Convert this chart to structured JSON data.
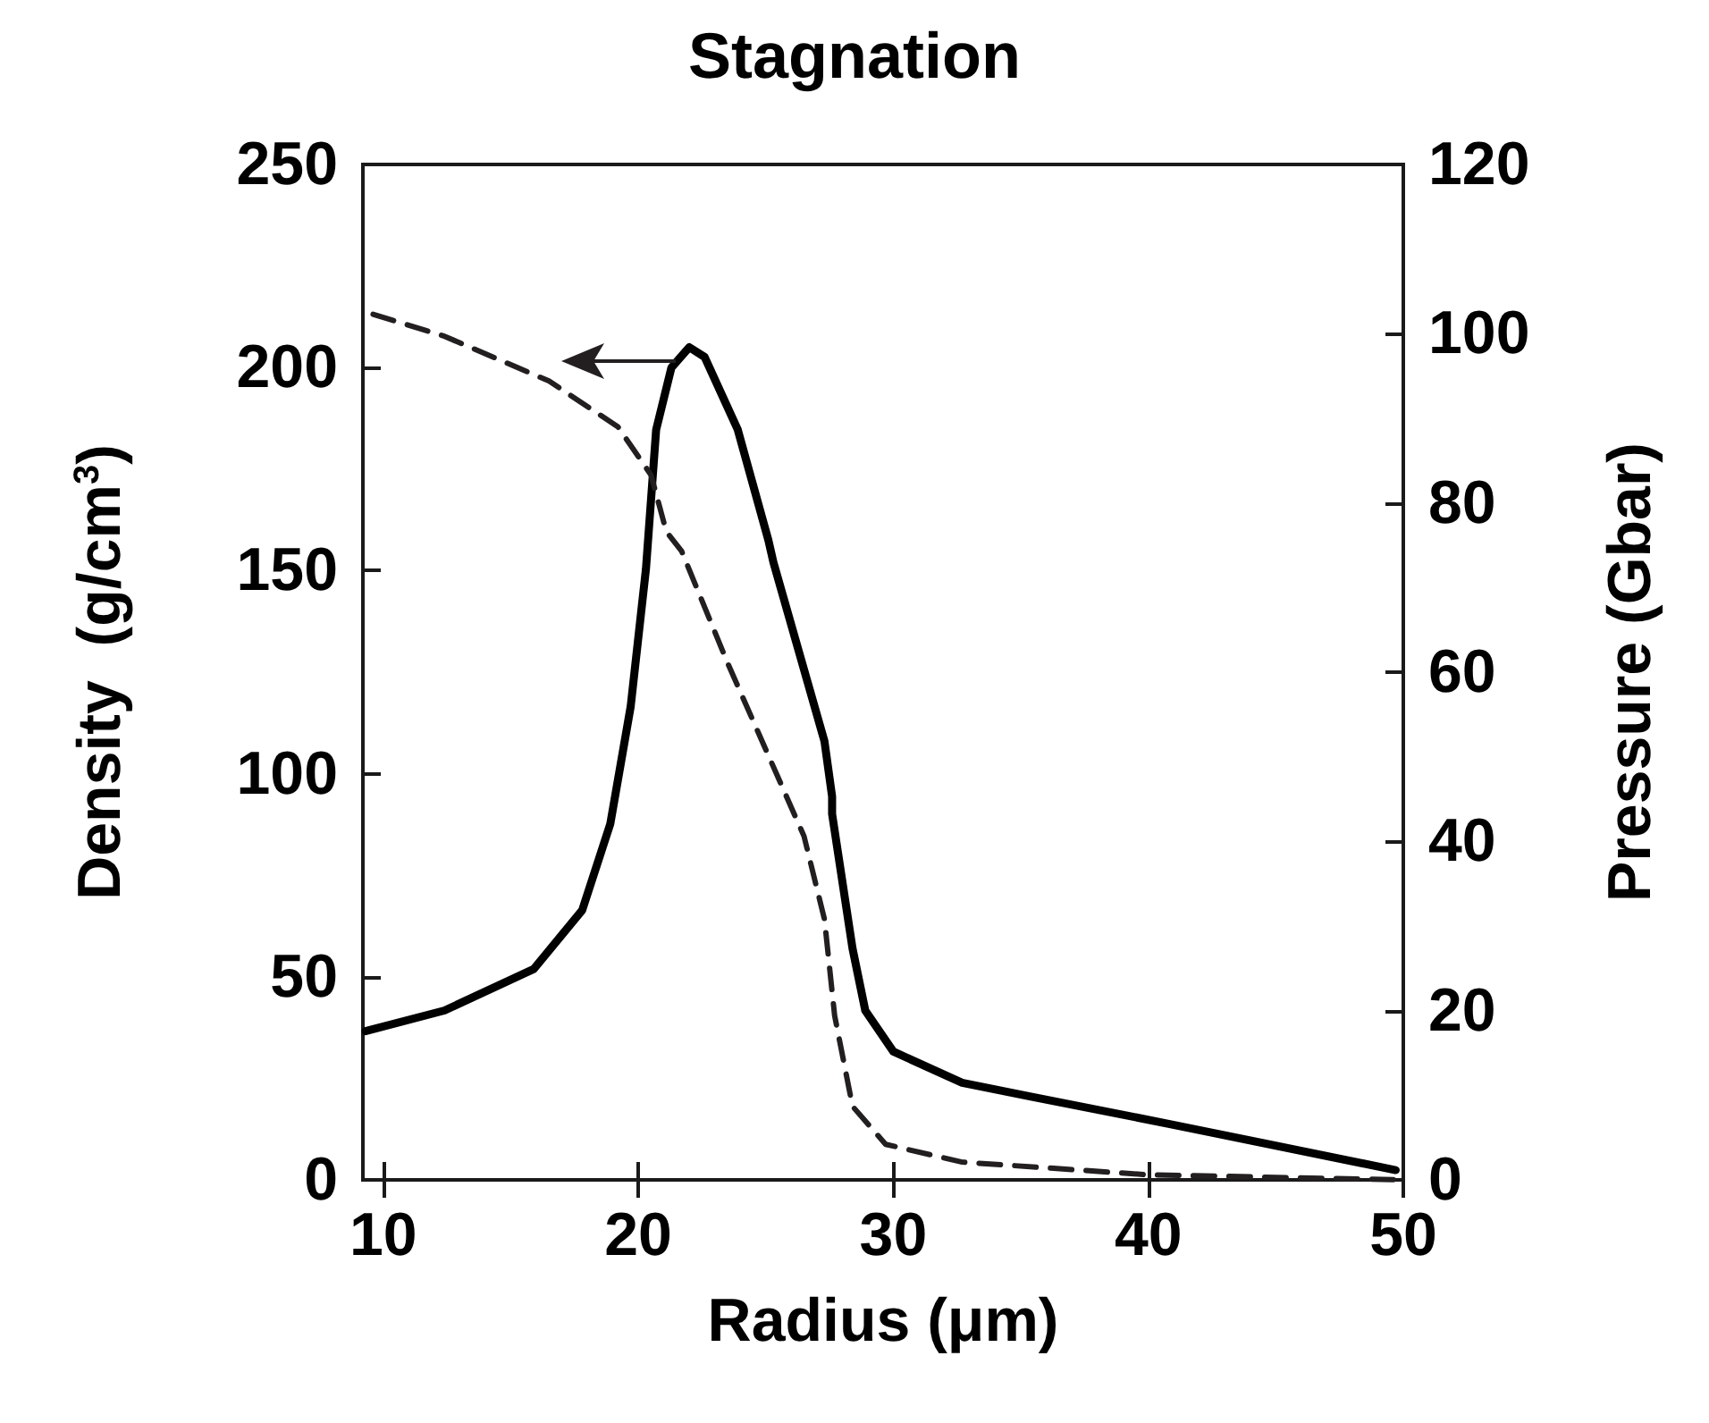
{
  "chart_data": {
    "type": "line",
    "title": "Stagnation",
    "xlabel": "Radius (μm)",
    "ylabel": "Density  (g/cm$^{3}$)",
    "y2label": "Pressure (Gbar)",
    "xlim": [
      9.2,
      50
    ],
    "xticks": [
      10,
      20,
      30,
      40,
      50
    ],
    "ylim": [
      0,
      250
    ],
    "yticks": [
      0,
      50,
      100,
      150,
      200,
      250
    ],
    "y2lim": [
      0,
      120
    ],
    "y2ticks": [
      0,
      20,
      40,
      60,
      80,
      100,
      120
    ],
    "grid": false,
    "marker": "none",
    "series": [
      {
        "color": "#000000",
        "line_style": "solid",
        "x": [
          9.3,
          12.4,
          15.9,
          17.8,
          18.9,
          19.7,
          20.3,
          20.7,
          21.3,
          22.0,
          22.6,
          23.9,
          25.1,
          25.3,
          27.3,
          27.6,
          27.6,
          28.4,
          28.9,
          30.0,
          32.7,
          35.4,
          40.8,
          49.7
        ],
        "values": [
          36.6,
          41.7,
          51.9,
          66.4,
          87.6,
          116.5,
          150.4,
          184.7,
          200,
          205,
          202.6,
          184.7,
          157.5,
          152,
          108,
          94.4,
          90.1,
          57,
          41.7,
          31.6,
          23.9,
          20.5,
          13.8,
          2.4
        ]
      },
      {
        "color": "#231f20",
        "line_style": "dashed",
        "axis": "y2",
        "x": [
          9.6,
          12.4,
          16.5,
          19.2,
          20.5,
          21.1,
          21.7,
          23.5,
          26.5,
          27.3,
          27.7,
          28.4,
          29.7,
          32.7,
          40.0,
          50.0
        ],
        "values": [
          102.3,
          99.7,
          94.4,
          89,
          83.3,
          76.6,
          74.3,
          61.1,
          40.6,
          30.8,
          19.4,
          8.7,
          4.2,
          2.1,
          0.6,
          0
        ]
      }
    ]
  }
}
